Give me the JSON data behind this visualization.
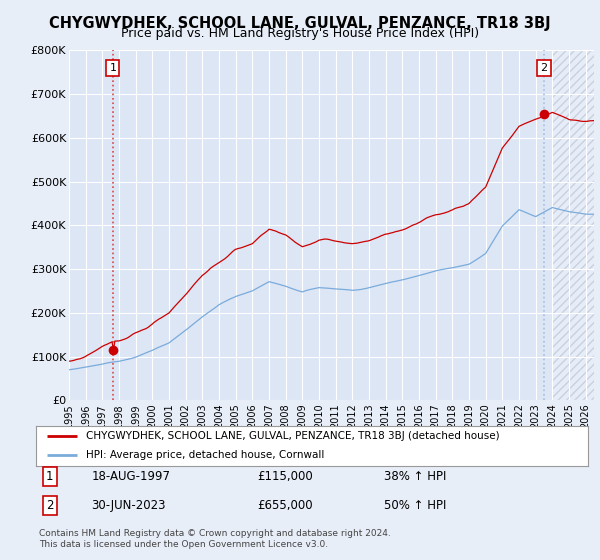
{
  "title": "CHYGWYDHEK, SCHOOL LANE, GULVAL, PENZANCE, TR18 3BJ",
  "subtitle": "Price paid vs. HM Land Registry's House Price Index (HPI)",
  "title_fontsize": 10.5,
  "subtitle_fontsize": 9,
  "background_color": "#e8eef8",
  "plot_bg_color": "#dce6f5",
  "ylabel_ticks": [
    "£0",
    "£100K",
    "£200K",
    "£300K",
    "£400K",
    "£500K",
    "£600K",
    "£700K",
    "£800K"
  ],
  "ytick_values": [
    0,
    100000,
    200000,
    300000,
    400000,
    500000,
    600000,
    700000,
    800000
  ],
  "ylim": [
    0,
    800000
  ],
  "xlim_start": 1995.0,
  "xlim_end": 2026.5,
  "xticks": [
    1995,
    1996,
    1997,
    1998,
    1999,
    2000,
    2001,
    2002,
    2003,
    2004,
    2005,
    2006,
    2007,
    2008,
    2009,
    2010,
    2011,
    2012,
    2013,
    2014,
    2015,
    2016,
    2017,
    2018,
    2019,
    2020,
    2021,
    2022,
    2023,
    2024,
    2025,
    2026
  ],
  "sale1_x": 1997.63,
  "sale1_y": 115000,
  "sale1_label": "1",
  "sale1_date": "18-AUG-1997",
  "sale1_price": "£115,000",
  "sale1_hpi": "38% ↑ HPI",
  "sale2_x": 2023.5,
  "sale2_y": 655000,
  "sale2_label": "2",
  "sale2_date": "30-JUN-2023",
  "sale2_price": "£655,000",
  "sale2_hpi": "50% ↑ HPI",
  "red_line_color": "#cc0000",
  "blue_line_color": "#7aabdb",
  "dashed_line_color1": "#dd4444",
  "dashed_line_color2": "#aabbdd",
  "legend_label_red": "CHYGWYDHEK, SCHOOL LANE, GULVAL, PENZANCE, TR18 3BJ (detached house)",
  "legend_label_blue": "HPI: Average price, detached house, Cornwall",
  "footer": "Contains HM Land Registry data © Crown copyright and database right 2024.\nThis data is licensed under the Open Government Licence v3.0.",
  "hatch_start": 2024.0,
  "hatch_color": "#b0bed0"
}
